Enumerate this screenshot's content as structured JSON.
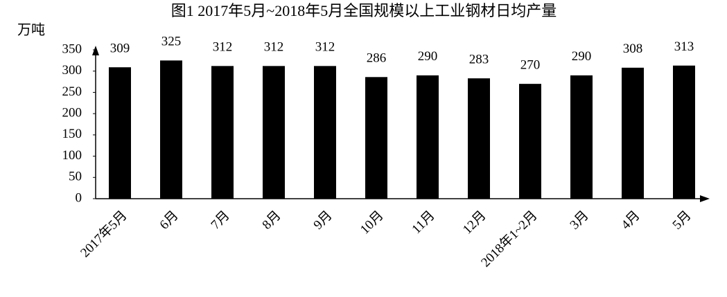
{
  "chart_data": {
    "type": "bar",
    "title": "图1 2017年5月~2018年5月全国规模以上工业钢材日均产量",
    "y_label": "万吨",
    "categories": [
      "2017年5月",
      "6月",
      "7月",
      "8月",
      "9月",
      "10月",
      "11月",
      "12月",
      "2018年1~2月",
      "3月",
      "4月",
      "5月"
    ],
    "values": [
      309,
      325,
      312,
      312,
      312,
      286,
      290,
      283,
      270,
      290,
      308,
      313
    ],
    "color": "#000000",
    "ylim": [
      0,
      350
    ],
    "yticks": [
      0,
      50,
      100,
      150,
      200,
      250,
      300,
      350
    ],
    "grid": false
  }
}
